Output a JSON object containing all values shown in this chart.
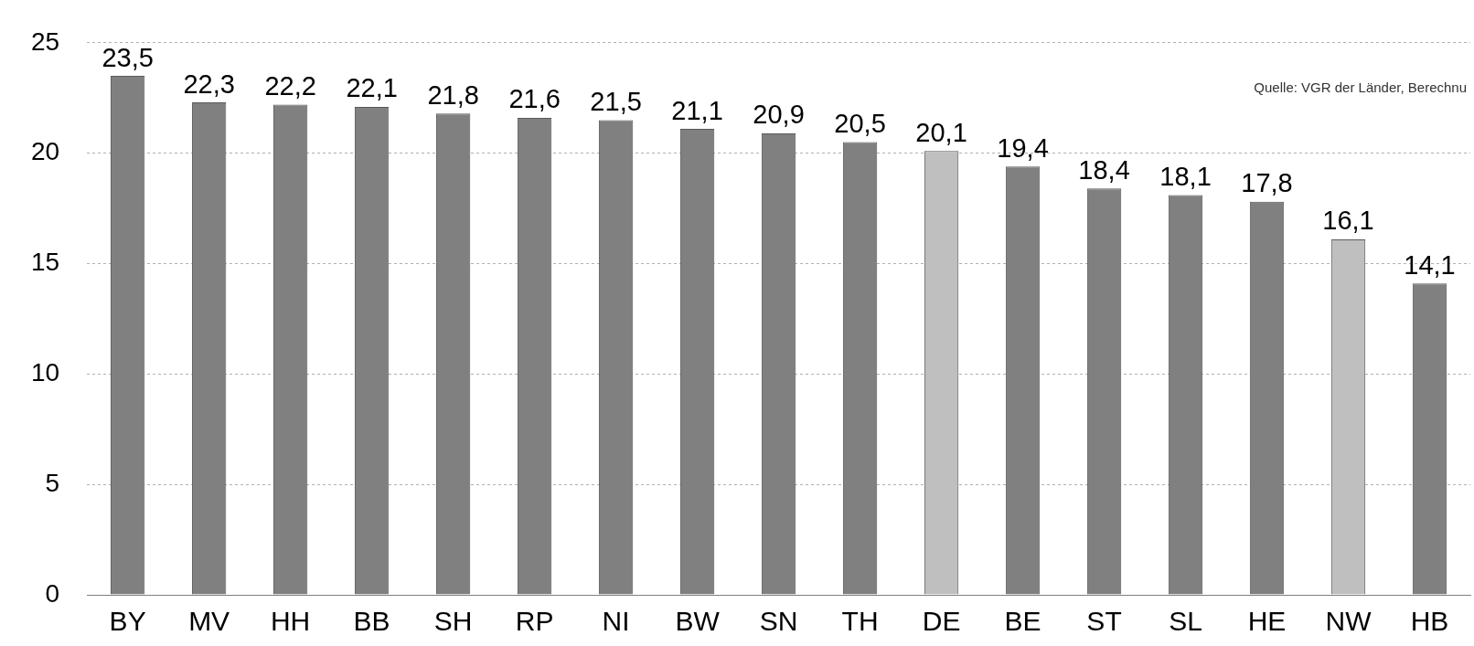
{
  "chart_data": {
    "type": "bar",
    "categories": [
      "BY",
      "MV",
      "HH",
      "BB",
      "SH",
      "RP",
      "NI",
      "BW",
      "SN",
      "TH",
      "DE",
      "BE",
      "ST",
      "SL",
      "HE",
      "NW",
      "HB"
    ],
    "values": [
      23.5,
      22.3,
      22.2,
      22.1,
      21.8,
      21.6,
      21.5,
      21.1,
      20.9,
      20.5,
      20.1,
      19.4,
      18.4,
      18.1,
      17.8,
      16.1,
      14.1
    ],
    "colors": [
      "#808080",
      "#808080",
      "#808080",
      "#808080",
      "#808080",
      "#808080",
      "#808080",
      "#808080",
      "#808080",
      "#808080",
      "#bfbfbf",
      "#808080",
      "#808080",
      "#808080",
      "#808080",
      "#bfbfbf",
      "#808080"
    ],
    "value_labels": [
      "23,5",
      "22,3",
      "22,2",
      "22,1",
      "21,8",
      "21,6",
      "21,5",
      "21,1",
      "20,9",
      "20,5",
      "20,1",
      "19,4",
      "18,4",
      "18,1",
      "17,8",
      "16,1",
      "14,1"
    ],
    "ylim": [
      0,
      25
    ],
    "yticks": [
      0,
      5,
      10,
      15,
      20,
      25
    ],
    "grid": "y",
    "legend": false,
    "annotations": [
      "Quelle: VGR der Länder, Berechnu"
    ]
  }
}
